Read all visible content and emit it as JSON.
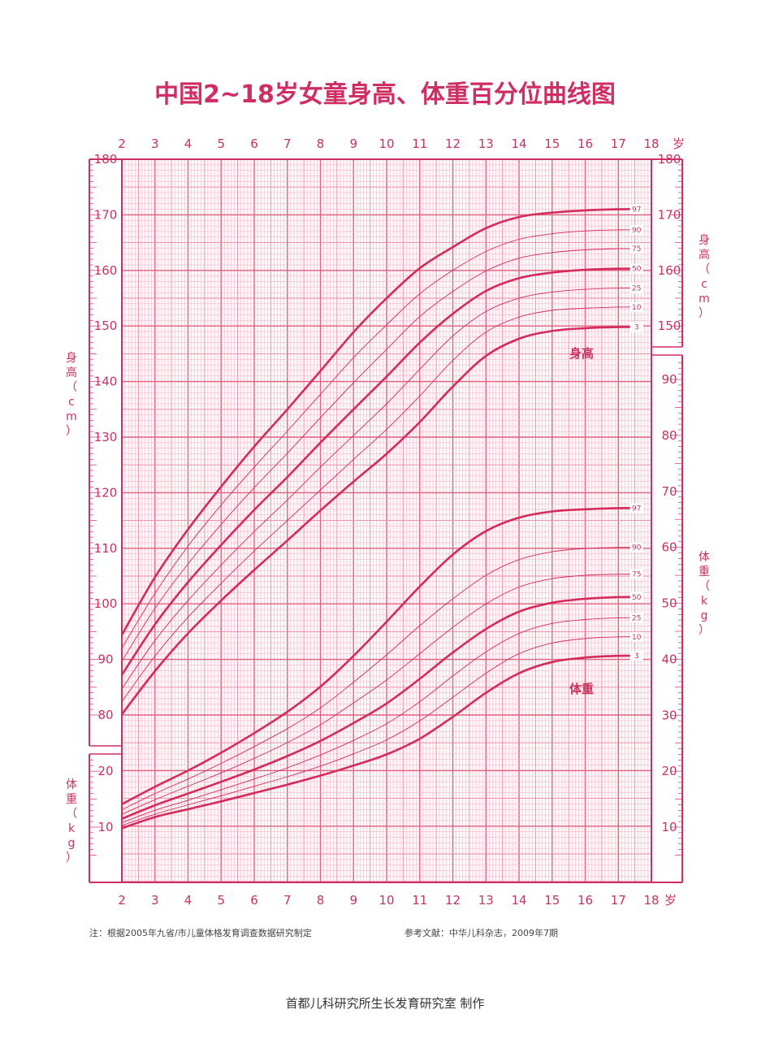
{
  "chart_data": {
    "type": "line",
    "title": "中国2~18岁女童身高、体重百分位曲线图",
    "x_unit": "岁",
    "x_ticks": [
      "2",
      "3",
      "4",
      "5",
      "6",
      "7",
      "8",
      "9",
      "10",
      "11",
      "12",
      "13",
      "14",
      "15",
      "16",
      "17",
      "18"
    ],
    "xlim": [
      2,
      18
    ],
    "height_axis": {
      "label": "身高（cm）",
      "range": [
        80,
        180
      ],
      "ticks": [
        "80",
        "90",
        "100",
        "110",
        "120",
        "130",
        "140",
        "150",
        "160",
        "170",
        "180"
      ]
    },
    "weight_axis": {
      "label": "体重（kg）",
      "range": [
        5,
        95
      ],
      "ticks_left": [
        "10",
        "20"
      ],
      "ticks_right": [
        "10",
        "20",
        "30",
        "40",
        "50",
        "60",
        "70",
        "80",
        "90"
      ]
    },
    "height_curve_label": "身高",
    "weight_curve_label": "体重",
    "percentiles": [
      "3",
      "10",
      "25",
      "50",
      "75",
      "90",
      "97"
    ],
    "height_x": [
      2,
      3,
      4,
      5,
      6,
      7,
      8,
      9,
      10,
      11,
      12,
      13,
      14,
      15,
      16,
      17
    ],
    "height_series": [
      {
        "name": "3",
        "values": [
          80.1,
          87.9,
          94.7,
          100.6,
          106.1,
          111.4,
          116.8,
          122.0,
          127.0,
          132.7,
          139.1,
          144.6,
          147.7,
          149.1,
          149.6,
          149.8
        ]
      },
      {
        "name": "10",
        "values": [
          82.4,
          90.6,
          97.6,
          103.7,
          109.5,
          115.0,
          120.5,
          126.0,
          131.4,
          137.4,
          143.8,
          148.9,
          151.6,
          152.8,
          153.2,
          153.4
        ]
      },
      {
        "name": "25",
        "values": [
          84.7,
          93.4,
          100.6,
          107.0,
          113.0,
          118.7,
          124.6,
          130.3,
          136.0,
          142.2,
          148.2,
          152.6,
          155.0,
          156.1,
          156.6,
          156.8
        ]
      },
      {
        "name": "50",
        "values": [
          87.2,
          96.3,
          103.9,
          110.6,
          116.9,
          122.8,
          129.0,
          135.0,
          140.9,
          147.0,
          152.2,
          156.3,
          158.6,
          159.6,
          160.1,
          160.3
        ]
      },
      {
        "name": "75",
        "values": [
          89.7,
          99.2,
          107.2,
          114.3,
          120.9,
          127.1,
          133.5,
          139.8,
          145.8,
          151.7,
          156.2,
          159.9,
          162.2,
          163.2,
          163.7,
          163.9
        ]
      },
      {
        "name": "90",
        "values": [
          92.0,
          101.9,
          110.4,
          117.8,
          124.6,
          131.1,
          137.7,
          144.3,
          150.2,
          155.8,
          160.0,
          163.4,
          165.6,
          166.6,
          167.1,
          167.3
        ]
      },
      {
        "name": "97",
        "values": [
          94.4,
          104.8,
          113.4,
          121.1,
          128.3,
          135.0,
          141.9,
          148.9,
          155.0,
          160.4,
          164.2,
          167.6,
          169.6,
          170.4,
          170.8,
          171.0
        ]
      }
    ],
    "weight_x": [
      2,
      3,
      4,
      5,
      6,
      7,
      8,
      9,
      10,
      11,
      12,
      13,
      14,
      15,
      16,
      17
    ],
    "weight_series": [
      {
        "name": "3",
        "values": [
          9.8,
          11.8,
          13.2,
          14.6,
          16.1,
          17.6,
          19.2,
          21.0,
          23.0,
          25.8,
          29.7,
          34.0,
          37.5,
          39.5,
          40.3,
          40.6
        ]
      },
      {
        "name": "10",
        "values": [
          10.3,
          12.3,
          14.0,
          15.6,
          17.3,
          19.0,
          20.9,
          23.1,
          25.6,
          29.0,
          33.2,
          37.5,
          41.0,
          42.9,
          43.7,
          44.0
        ]
      },
      {
        "name": "25",
        "values": [
          10.8,
          13.0,
          14.8,
          16.7,
          18.6,
          20.6,
          22.9,
          25.5,
          28.5,
          32.4,
          37.0,
          41.3,
          44.6,
          46.4,
          47.1,
          47.4
        ]
      },
      {
        "name": "50",
        "values": [
          11.5,
          13.9,
          16.0,
          18.1,
          20.3,
          22.7,
          25.4,
          28.6,
          32.1,
          36.5,
          41.2,
          45.4,
          48.5,
          50.1,
          50.8,
          51.1
        ]
      },
      {
        "name": "75",
        "values": [
          12.3,
          14.9,
          17.3,
          19.7,
          22.3,
          25.1,
          28.3,
          32.2,
          36.3,
          41.0,
          45.7,
          49.9,
          52.9,
          54.4,
          55.0,
          55.2
        ]
      },
      {
        "name": "90",
        "values": [
          13.1,
          16.0,
          18.6,
          21.4,
          24.4,
          27.6,
          31.3,
          35.9,
          40.8,
          46.0,
          50.8,
          55.0,
          57.8,
          59.2,
          59.8,
          60.0
        ]
      },
      {
        "name": "97",
        "values": [
          14.1,
          17.2,
          20.1,
          23.3,
          26.8,
          30.6,
          35.1,
          40.6,
          46.7,
          53.0,
          58.7,
          62.9,
          65.3,
          66.4,
          66.8,
          67.0
        ]
      }
    ],
    "grid": true
  },
  "notes": {
    "left": "注：根据2005年九省/市儿童体格发育调查数据研究制定",
    "right": "参考文献：中华儿科杂志，2009年7期"
  },
  "footer": "首都儿科研究所生长发育研究室 制作",
  "colors": {
    "grid": "#f2aebe",
    "grid_major": "#e0607f",
    "curve": "#d22b5c",
    "frame": "#cf2e62"
  }
}
